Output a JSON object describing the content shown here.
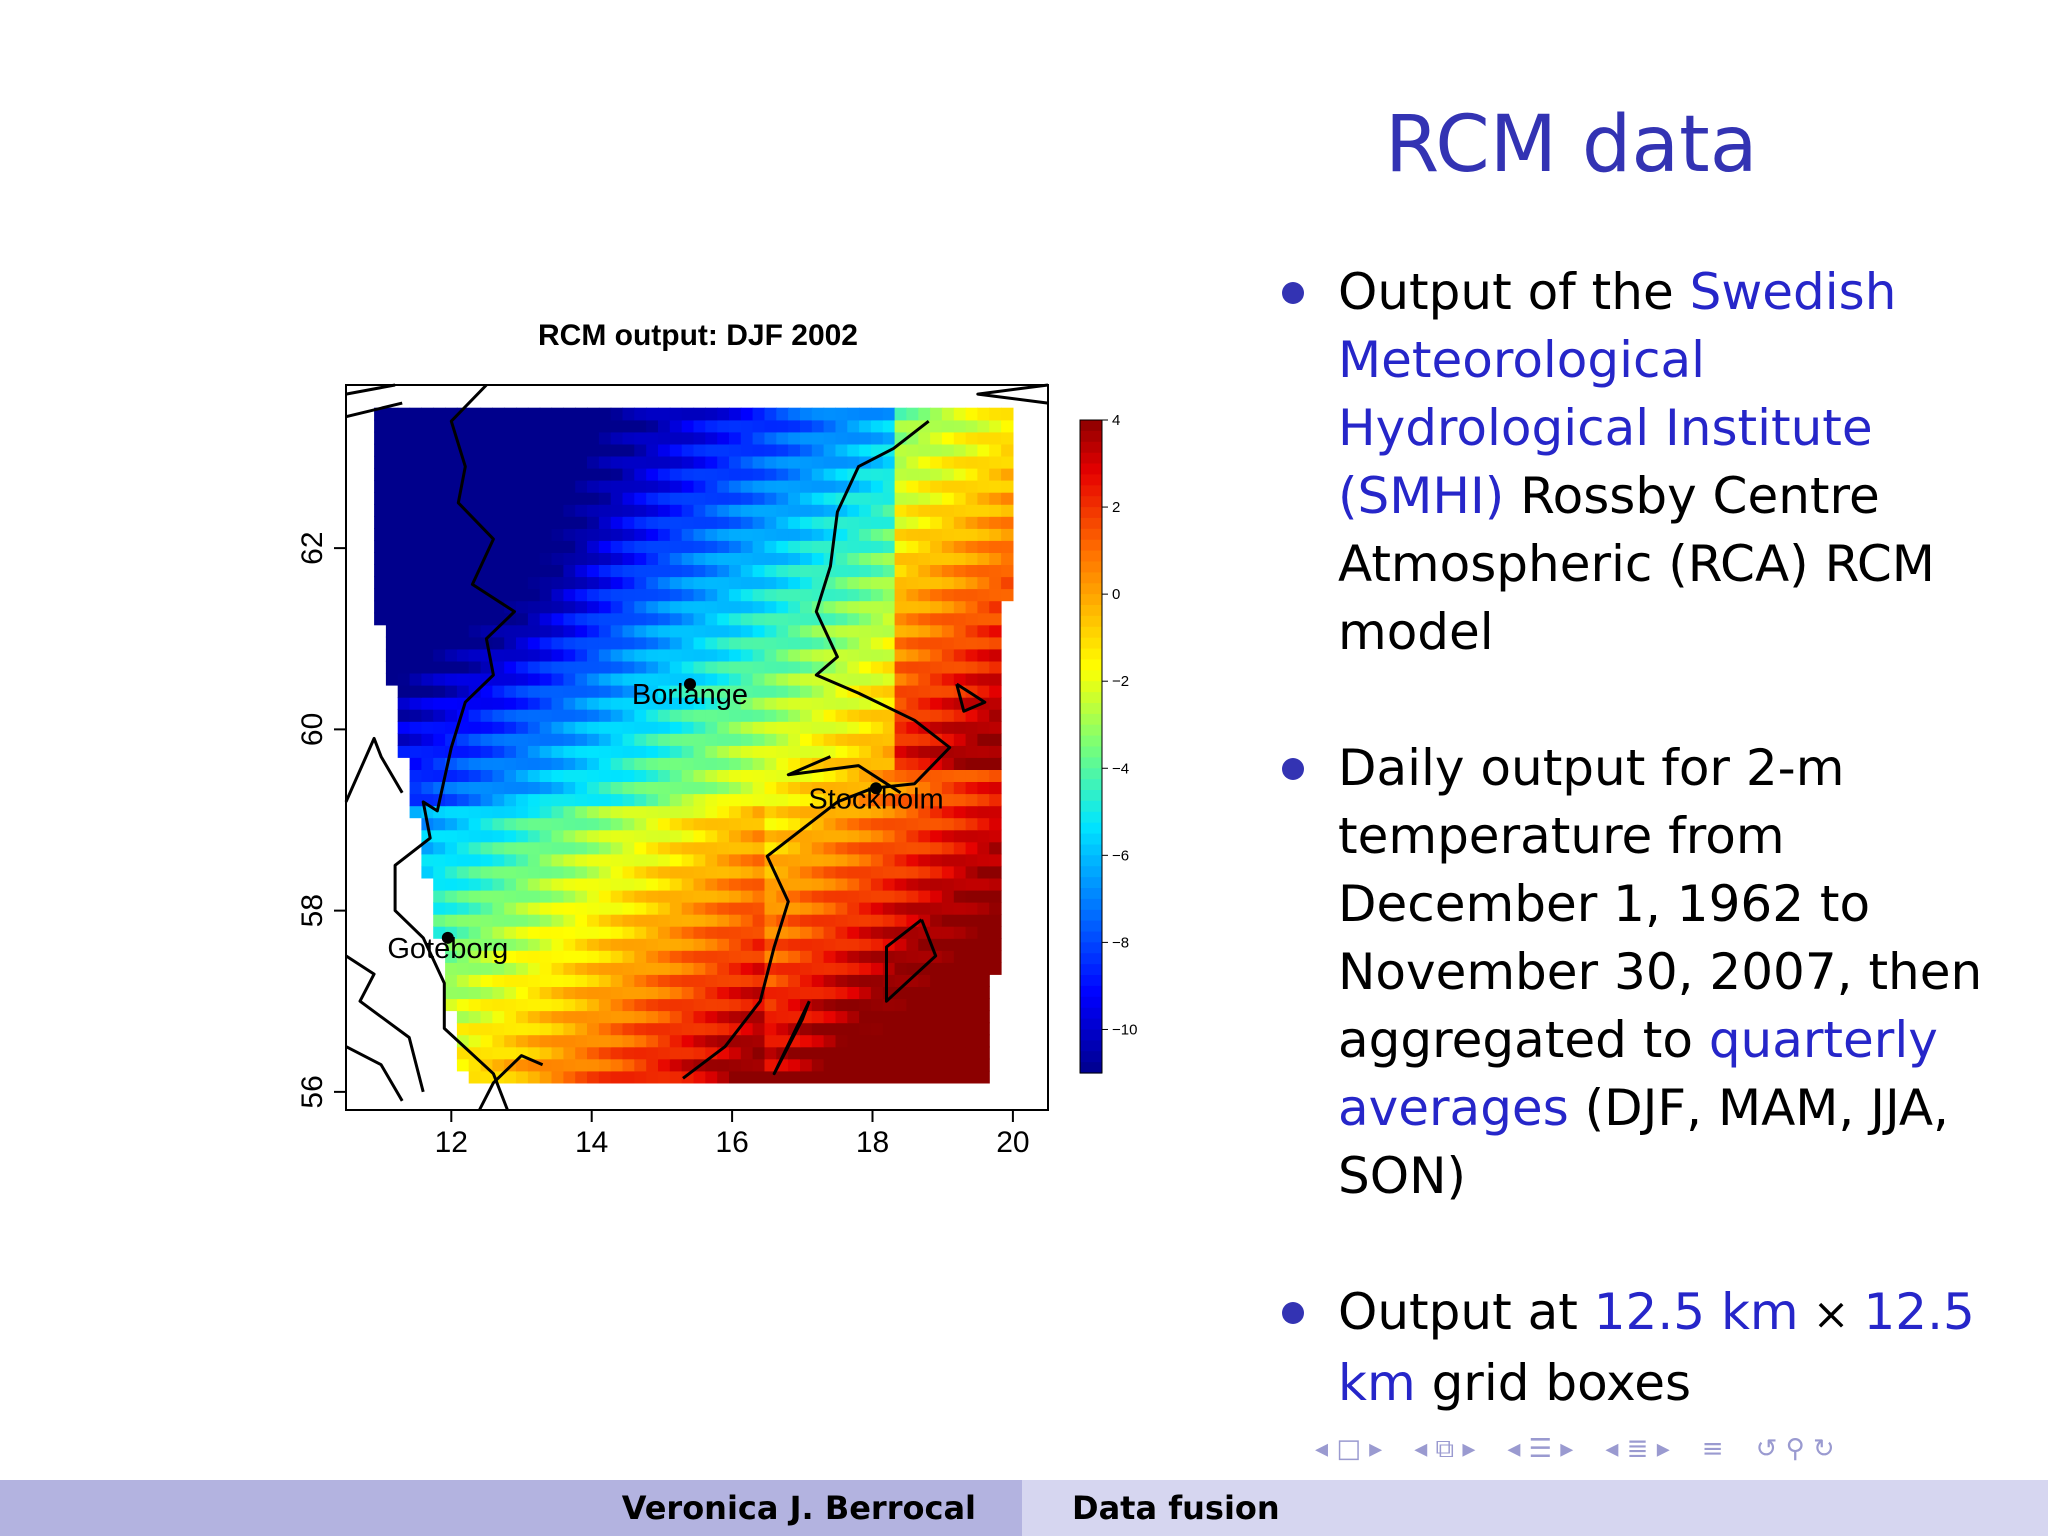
{
  "slide": {
    "title": "RCM data",
    "bullets": [
      {
        "parts": [
          {
            "t": "Output of the ",
            "hl": false
          },
          {
            "t": "Swedish Meteorological Hydrological Institute (SMHI)",
            "hl": true
          },
          {
            "t": " Rossby Centre Atmospheric (RCA) RCM model",
            "hl": false
          }
        ]
      },
      {
        "parts": [
          {
            "t": "Daily output for 2-m temperature from December 1, 1962 to November 30, 2007, then aggregated to ",
            "hl": false
          },
          {
            "t": "quarterly averages",
            "hl": true
          },
          {
            "t": " (DJF, MAM, JJA, SON)",
            "hl": false
          }
        ]
      },
      {
        "parts": [
          {
            "t": "Output at ",
            "hl": false
          },
          {
            "t": "12.5 km",
            "hl": true
          },
          {
            "t": " × ",
            "hl": false,
            "times": true
          },
          {
            "t": "12.5 km",
            "hl": true
          },
          {
            "t": " grid boxes",
            "hl": false
          }
        ]
      }
    ]
  },
  "footer": {
    "author": "Veronica J. Berrocal",
    "short_title": "Data fusion"
  },
  "nav_icons": [
    "nav-frame-icon",
    "nav-subsection-icon",
    "nav-section-icon",
    "nav-document-icon",
    "nav-toc-icon",
    "nav-search-icon"
  ],
  "chart_data": {
    "type": "heatmap",
    "title": "RCM output: DJF 2002",
    "xlabel": "",
    "ylabel": "",
    "xlim": [
      10.5,
      20.5
    ],
    "ylim": [
      55.8,
      63.8
    ],
    "xticks": [
      12,
      14,
      16,
      18,
      20
    ],
    "yticks": [
      56,
      58,
      60,
      62
    ],
    "colorbar": {
      "min": -11,
      "max": 4,
      "ticks": [
        4,
        2,
        0,
        -2,
        -4,
        -6,
        -8,
        -10
      ]
    },
    "cities": [
      {
        "name": "Borlange",
        "lon": 15.4,
        "lat": 60.5
      },
      {
        "name": "Stockholm",
        "lon": 18.05,
        "lat": 59.35
      },
      {
        "name": "Goteborg",
        "lon": 11.95,
        "lat": 57.7
      }
    ],
    "field_notes": "temperature field approx: coldest (-10) in NW interior, warmest (+4) in SE over Baltic"
  }
}
